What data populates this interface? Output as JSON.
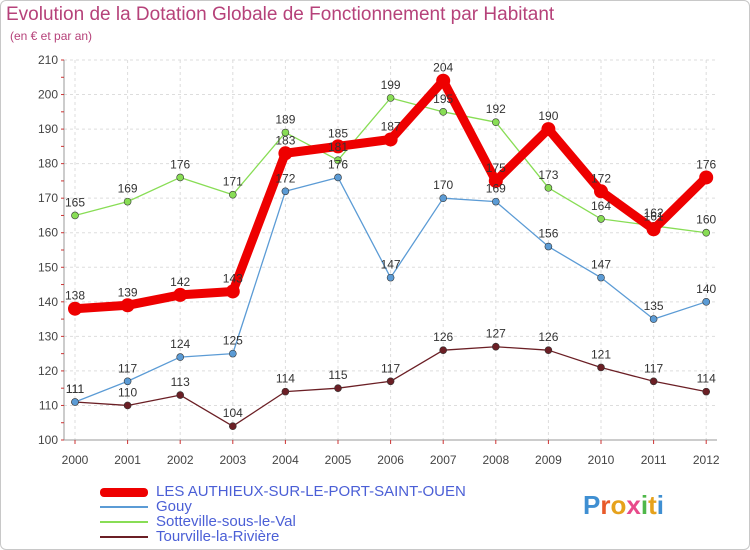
{
  "header": {
    "title": "Evolution de la Dotation Globale de Fonctionnement par Habitant",
    "subtitle": "(en € et par an)"
  },
  "logo": {
    "text": "Proxiti"
  },
  "chart_data": {
    "type": "line",
    "x": [
      2000,
      2001,
      2002,
      2003,
      2004,
      2005,
      2006,
      2007,
      2008,
      2009,
      2010,
      2011,
      2012
    ],
    "ylim": [
      100,
      210
    ],
    "yticks": [
      100,
      110,
      120,
      130,
      140,
      150,
      160,
      170,
      180,
      190,
      200,
      210
    ],
    "grid": true,
    "legend_position": "bottom",
    "series": [
      {
        "name": "Tourville-la-Rivière",
        "color": "#6b1f25",
        "values": [
          111,
          110,
          113,
          104,
          114,
          115,
          117,
          126,
          127,
          126,
          121,
          117,
          114
        ]
      },
      {
        "name": "Sotteville-sous-le-Val",
        "color": "#88dd55",
        "values": [
          165,
          169,
          176,
          171,
          189,
          181,
          199,
          195,
          192,
          173,
          164,
          162,
          160
        ]
      },
      {
        "name": "Gouy",
        "color": "#5b9bd5",
        "values": [
          111,
          117,
          124,
          125,
          172,
          176,
          147,
          170,
          169,
          156,
          147,
          135,
          140
        ]
      },
      {
        "name": "LES AUTHIEUX-SUR-LE-PORT-SAINT-OUEN",
        "color": "#ee0000",
        "values": [
          138,
          139,
          142,
          143,
          183,
          185,
          187,
          204,
          175,
          190,
          172,
          161,
          176
        ]
      }
    ]
  }
}
